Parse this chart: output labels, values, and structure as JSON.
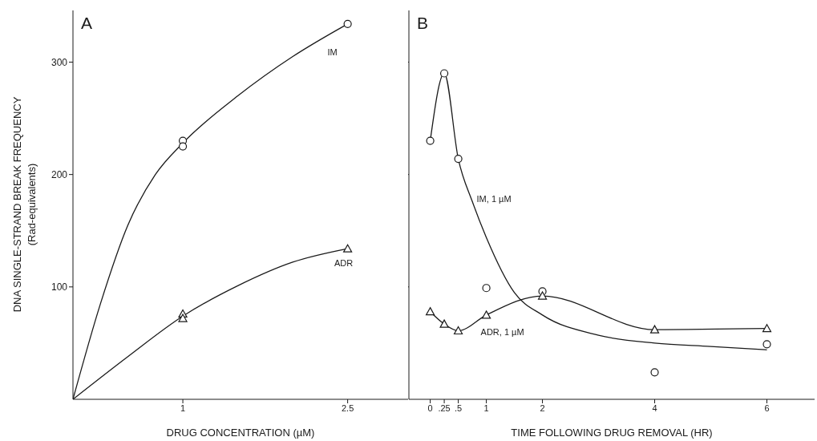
{
  "chart_data": [
    {
      "type": "line",
      "title": "A",
      "xlabel": "DRUG CONCENTRATION (µM)",
      "ylabel": "DNA SINGLE-STRAND BREAK FREQUENCY\n(Rad-equivalents)",
      "xlim": [
        0,
        3.05
      ],
      "xticks": [
        1,
        2.5
      ],
      "ylim": [
        0,
        346
      ],
      "yticks": [
        100,
        200,
        300
      ],
      "grid": false,
      "line_style": "solid",
      "series": [
        {
          "type": "scatter",
          "marker": "circle",
          "color": "#1a1a1a",
          "x": [
            1,
            1,
            2.5
          ],
          "values": [
            230,
            225,
            334
          ]
        },
        {
          "name": "IM",
          "marker": "none",
          "color": "#1a1a1a",
          "x": [
            0,
            0.25,
            0.5,
            0.75,
            1,
            1.5,
            2,
            2.5
          ],
          "values": [
            0,
            85,
            155,
            200,
            228,
            270,
            305,
            334
          ]
        },
        {
          "type": "scatter",
          "marker": "triangle",
          "color": "#1a1a1a",
          "x": [
            1,
            1,
            2.5
          ],
          "values": [
            76,
            72,
            134
          ]
        },
        {
          "name": "ADR",
          "marker": "none",
          "color": "#1a1a1a",
          "x": [
            0,
            0.5,
            1,
            1.5,
            2,
            2.5
          ],
          "values": [
            0,
            38,
            74,
            101,
            122,
            134
          ]
        }
      ]
    },
    {
      "type": "line",
      "title": "B",
      "xlabel": "TIME FOLLOWING DRUG REMOVAL (HR)",
      "xlim": [
        -0.38,
        6.85
      ],
      "xticks": [
        0,
        {
          "value": 0.25,
          "label": ".25"
        },
        {
          "value": 0.5,
          "label": ".5"
        },
        1,
        2,
        4,
        6
      ],
      "ylim": [
        0,
        346
      ],
      "yticks": [
        100,
        200,
        300
      ],
      "tick_labels": "x",
      "grid": false,
      "line_style": "solid",
      "series": [
        {
          "type": "scatter",
          "marker": "circle",
          "color": "#1a1a1a",
          "x": [
            0,
            0.25,
            0.5,
            1,
            2,
            4,
            6
          ],
          "values": [
            230,
            290,
            214,
            99,
            96,
            24,
            49
          ]
        },
        {
          "name": "IM, 1 µM",
          "marker": "none",
          "color": "#1a1a1a",
          "x": [
            0,
            0.25,
            0.5,
            0.75,
            1,
            1.5,
            2,
            3,
            4,
            5,
            6
          ],
          "values": [
            230,
            290,
            214,
            176,
            144,
            95,
            75,
            57,
            50,
            47,
            44
          ]
        },
        {
          "name": "ADR, 1 µM",
          "marker": "triangle",
          "color": "#1a1a1a",
          "x": [
            0,
            0.25,
            0.5,
            1,
            2,
            4,
            6
          ],
          "values": [
            78,
            67,
            61,
            75,
            92,
            62,
            63
          ]
        }
      ]
    }
  ]
}
